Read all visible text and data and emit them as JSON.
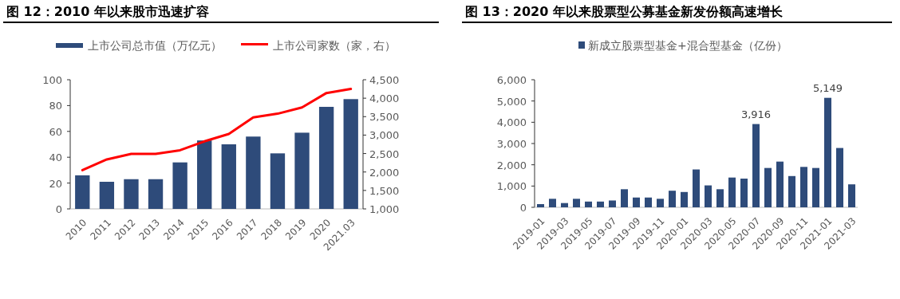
{
  "chart_data": [
    {
      "type": "bar",
      "title": "图 12：2010 年以来股市迅速扩容",
      "categories": [
        "2010",
        "2011",
        "2012",
        "2013",
        "2014",
        "2015",
        "2016",
        "2017",
        "2018",
        "2019",
        "2020",
        "2021.03"
      ],
      "series": [
        {
          "name": "上市公司总市值（万亿元）",
          "color": "#2e4b7a",
          "values": [
            26,
            21,
            23,
            23,
            36,
            53,
            50,
            56,
            43,
            59,
            79,
            85
          ]
        },
        {
          "name": "上市公司家数（家，右）",
          "type": "line",
          "axis": "y2",
          "color": "#ff0000",
          "values": [
            2050,
            2340,
            2490,
            2490,
            2590,
            2830,
            3030,
            3480,
            3580,
            3750,
            4140,
            4250
          ]
        }
      ],
      "ylim": [
        0,
        100
      ],
      "yticks": [
        0,
        20,
        40,
        60,
        80,
        100
      ],
      "y2lim": [
        1000,
        4500
      ],
      "y2ticks": [
        {
          "value": 1000,
          "label": "1,000"
        },
        {
          "value": 1500,
          "label": "1,500"
        },
        {
          "value": 2000,
          "label": "2,000"
        },
        {
          "value": 2500,
          "label": "2,500"
        },
        {
          "value": 3000,
          "label": "3,000"
        },
        {
          "value": 3500,
          "label": "3,500"
        },
        {
          "value": 4000,
          "label": "4,000"
        },
        {
          "value": 4500,
          "label": "4,500"
        }
      ],
      "legend": "top",
      "grid": false
    },
    {
      "type": "bar",
      "title": "图 13：2020 年以来股票型公募基金新发份额高速增长",
      "categories": [
        "2019-01",
        null,
        "2019-03",
        null,
        "2019-05",
        null,
        "2019-07",
        null,
        "2019-09",
        null,
        "2019-11",
        null,
        "2020-01",
        null,
        "2020-03",
        null,
        "2020-05",
        null,
        "2020-07",
        null,
        "2020-09",
        null,
        "2020-11",
        null,
        "2021-01",
        null,
        "2021-03"
      ],
      "series": [
        {
          "name": "新成立股票型基金+混合型基金（亿份）",
          "color": "#2e4b7a",
          "values": [
            150,
            400,
            200,
            400,
            270,
            270,
            320,
            850,
            460,
            460,
            400,
            780,
            720,
            1780,
            1030,
            850,
            1400,
            1350,
            3916,
            1850,
            2150,
            1470,
            1900,
            1850,
            5149,
            2790,
            1080
          ],
          "value_labels": [
            null,
            null,
            null,
            null,
            null,
            null,
            null,
            null,
            null,
            null,
            null,
            null,
            null,
            null,
            null,
            null,
            null,
            null,
            "3,916",
            null,
            null,
            null,
            null,
            null,
            "5,149",
            null,
            null
          ]
        }
      ],
      "ylim": [
        0,
        6000
      ],
      "yticks": [
        {
          "value": 0,
          "label": "0"
        },
        {
          "value": 1000,
          "label": "1,000"
        },
        {
          "value": 2000,
          "label": "2,000"
        },
        {
          "value": 3000,
          "label": "3,000"
        },
        {
          "value": 4000,
          "label": "4,000"
        },
        {
          "value": 5000,
          "label": "5,000"
        },
        {
          "value": 6000,
          "label": "6,000"
        }
      ],
      "legend": "top",
      "grid": false
    }
  ]
}
